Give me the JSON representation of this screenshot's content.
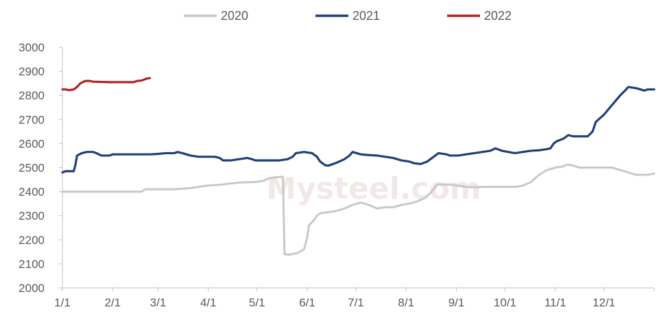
{
  "chart_data": {
    "type": "line",
    "title": "",
    "xlabel": "",
    "ylabel": "",
    "ylim": [
      2000,
      3000
    ],
    "yticks": [
      2000,
      2100,
      2200,
      2300,
      2400,
      2500,
      2600,
      2700,
      2800,
      2900,
      3000
    ],
    "xlim": [
      1,
      366
    ],
    "xticks": [
      {
        "label": "1/1",
        "day": 1
      },
      {
        "label": "2/1",
        "day": 32
      },
      {
        "label": "3/1",
        "day": 60
      },
      {
        "label": "4/1",
        "day": 91
      },
      {
        "label": "5/1",
        "day": 121
      },
      {
        "label": "6/1",
        "day": 152
      },
      {
        "label": "7/1",
        "day": 182
      },
      {
        "label": "8/1",
        "day": 213
      },
      {
        "label": "9/1",
        "day": 244
      },
      {
        "label": "10/1",
        "day": 274
      },
      {
        "label": "11/1",
        "day": 305
      },
      {
        "label": "12/1",
        "day": 335
      }
    ],
    "grid": false,
    "legend_position": "top-center",
    "watermark": "Mysteel.com",
    "series": [
      {
        "name": "2020",
        "color": "#c8c8c8",
        "points": [
          [
            1,
            2400
          ],
          [
            20,
            2400
          ],
          [
            40,
            2400
          ],
          [
            50,
            2400
          ],
          [
            52,
            2410
          ],
          [
            60,
            2410
          ],
          [
            70,
            2410
          ],
          [
            80,
            2415
          ],
          [
            90,
            2425
          ],
          [
            100,
            2430
          ],
          [
            110,
            2438
          ],
          [
            120,
            2440
          ],
          [
            125,
            2445
          ],
          [
            128,
            2455
          ],
          [
            133,
            2460
          ],
          [
            137,
            2462
          ],
          [
            138,
            2140
          ],
          [
            141,
            2138
          ],
          [
            146,
            2145
          ],
          [
            150,
            2160
          ],
          [
            152,
            2210
          ],
          [
            153,
            2260
          ],
          [
            156,
            2280
          ],
          [
            158,
            2300
          ],
          [
            160,
            2310
          ],
          [
            165,
            2315
          ],
          [
            170,
            2320
          ],
          [
            175,
            2330
          ],
          [
            180,
            2345
          ],
          [
            185,
            2355
          ],
          [
            190,
            2345
          ],
          [
            195,
            2330
          ],
          [
            200,
            2335
          ],
          [
            205,
            2335
          ],
          [
            210,
            2345
          ],
          [
            215,
            2350
          ],
          [
            220,
            2360
          ],
          [
            225,
            2375
          ],
          [
            228,
            2395
          ],
          [
            230,
            2410
          ],
          [
            232,
            2430
          ],
          [
            240,
            2430
          ],
          [
            245,
            2425
          ],
          [
            250,
            2420
          ],
          [
            255,
            2418
          ],
          [
            260,
            2420
          ],
          [
            270,
            2420
          ],
          [
            280,
            2420
          ],
          [
            285,
            2425
          ],
          [
            290,
            2440
          ],
          [
            295,
            2470
          ],
          [
            300,
            2490
          ],
          [
            305,
            2500
          ],
          [
            310,
            2505
          ],
          [
            312,
            2512
          ],
          [
            315,
            2510
          ],
          [
            320,
            2500
          ],
          [
            330,
            2500
          ],
          [
            340,
            2500
          ],
          [
            345,
            2490
          ],
          [
            350,
            2480
          ],
          [
            355,
            2470
          ],
          [
            362,
            2470
          ],
          [
            366,
            2475
          ]
        ]
      },
      {
        "name": "2021",
        "color": "#1f3f7a",
        "points": [
          [
            1,
            2480
          ],
          [
            3,
            2485
          ],
          [
            8,
            2485
          ],
          [
            9,
            2510
          ],
          [
            10,
            2550
          ],
          [
            13,
            2560
          ],
          [
            16,
            2565
          ],
          [
            20,
            2565
          ],
          [
            22,
            2560
          ],
          [
            25,
            2550
          ],
          [
            30,
            2550
          ],
          [
            32,
            2555
          ],
          [
            40,
            2555
          ],
          [
            50,
            2555
          ],
          [
            55,
            2555
          ],
          [
            60,
            2557
          ],
          [
            65,
            2560
          ],
          [
            70,
            2560
          ],
          [
            72,
            2565
          ],
          [
            75,
            2560
          ],
          [
            80,
            2550
          ],
          [
            85,
            2545
          ],
          [
            90,
            2545
          ],
          [
            95,
            2545
          ],
          [
            98,
            2540
          ],
          [
            100,
            2530
          ],
          [
            105,
            2530
          ],
          [
            110,
            2535
          ],
          [
            115,
            2540
          ],
          [
            118,
            2535
          ],
          [
            120,
            2530
          ],
          [
            125,
            2530
          ],
          [
            130,
            2530
          ],
          [
            135,
            2530
          ],
          [
            140,
            2535
          ],
          [
            143,
            2545
          ],
          [
            145,
            2560
          ],
          [
            150,
            2565
          ],
          [
            155,
            2560
          ],
          [
            158,
            2545
          ],
          [
            160,
            2525
          ],
          [
            163,
            2510
          ],
          [
            165,
            2508
          ],
          [
            170,
            2520
          ],
          [
            175,
            2535
          ],
          [
            178,
            2550
          ],
          [
            180,
            2565
          ],
          [
            185,
            2555
          ],
          [
            190,
            2552
          ],
          [
            195,
            2550
          ],
          [
            200,
            2545
          ],
          [
            205,
            2540
          ],
          [
            210,
            2530
          ],
          [
            215,
            2525
          ],
          [
            218,
            2518
          ],
          [
            222,
            2515
          ],
          [
            226,
            2525
          ],
          [
            230,
            2545
          ],
          [
            233,
            2560
          ],
          [
            238,
            2555
          ],
          [
            240,
            2550
          ],
          [
            245,
            2550
          ],
          [
            250,
            2555
          ],
          [
            255,
            2560
          ],
          [
            260,
            2565
          ],
          [
            265,
            2570
          ],
          [
            268,
            2580
          ],
          [
            272,
            2570
          ],
          [
            276,
            2565
          ],
          [
            280,
            2560
          ],
          [
            285,
            2565
          ],
          [
            290,
            2570
          ],
          [
            295,
            2572
          ],
          [
            300,
            2577
          ],
          [
            302,
            2580
          ],
          [
            304,
            2600
          ],
          [
            306,
            2610
          ],
          [
            310,
            2620
          ],
          [
            313,
            2635
          ],
          [
            316,
            2630
          ],
          [
            320,
            2630
          ],
          [
            325,
            2630
          ],
          [
            328,
            2650
          ],
          [
            330,
            2690
          ],
          [
            335,
            2720
          ],
          [
            340,
            2760
          ],
          [
            345,
            2800
          ],
          [
            348,
            2820
          ],
          [
            350,
            2835
          ],
          [
            355,
            2830
          ],
          [
            360,
            2820
          ],
          [
            362,
            2825
          ],
          [
            366,
            2825
          ]
        ]
      },
      {
        "name": "2022",
        "color": "#b22222",
        "points": [
          [
            1,
            2825
          ],
          [
            3,
            2825
          ],
          [
            5,
            2822
          ],
          [
            8,
            2825
          ],
          [
            10,
            2835
          ],
          [
            12,
            2850
          ],
          [
            15,
            2860
          ],
          [
            18,
            2860
          ],
          [
            20,
            2857
          ],
          [
            30,
            2855
          ],
          [
            40,
            2855
          ],
          [
            45,
            2855
          ],
          [
            47,
            2860
          ],
          [
            50,
            2862
          ],
          [
            53,
            2870
          ],
          [
            55,
            2872
          ]
        ]
      }
    ]
  }
}
